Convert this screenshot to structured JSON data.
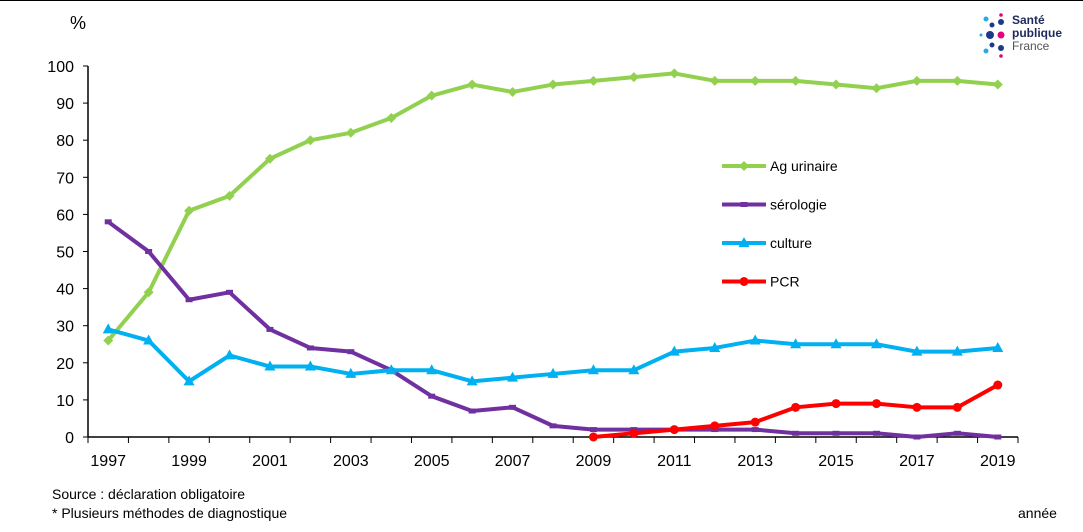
{
  "chart_data": {
    "type": "line",
    "ylabel": "%",
    "xlabel": "année",
    "ylim": [
      0,
      100
    ],
    "yticks": [
      0,
      10,
      20,
      30,
      40,
      50,
      60,
      70,
      80,
      90,
      100
    ],
    "x": [
      1997,
      1998,
      1999,
      2000,
      2001,
      2002,
      2003,
      2004,
      2005,
      2006,
      2007,
      2008,
      2009,
      2010,
      2011,
      2012,
      2013,
      2014,
      2015,
      2016,
      2017,
      2018,
      2019
    ],
    "xtick_labels": [
      "1997",
      "1999",
      "2001",
      "2003",
      "2005",
      "2007",
      "2009",
      "2011",
      "2013",
      "2015",
      "2017",
      "2019"
    ],
    "grid": false,
    "legend_placement": "center-right",
    "series": [
      {
        "name": "Ag urinaire",
        "color": "#92d050",
        "marker": "diamond",
        "values": [
          26,
          39,
          61,
          65,
          75,
          80,
          82,
          86,
          92,
          95,
          93,
          95,
          96,
          97,
          98,
          96,
          96,
          96,
          95,
          94,
          96,
          96,
          95
        ]
      },
      {
        "name": "sérologie",
        "color": "#7030a0",
        "marker": "square",
        "values": [
          58,
          50,
          37,
          39,
          29,
          24,
          23,
          18,
          11,
          7,
          8,
          3,
          2,
          2,
          2,
          2,
          2,
          1,
          1,
          1,
          0,
          1,
          0
        ]
      },
      {
        "name": "culture",
        "color": "#00b0f0",
        "marker": "triangle",
        "values": [
          29,
          26,
          15,
          22,
          19,
          19,
          17,
          18,
          18,
          15,
          16,
          17,
          18,
          18,
          23,
          24,
          26,
          25,
          25,
          25,
          23,
          23,
          24
        ]
      },
      {
        "name": "PCR",
        "color": "#ff0000",
        "marker": "circle",
        "values": [
          null,
          null,
          null,
          null,
          null,
          null,
          null,
          null,
          null,
          null,
          null,
          null,
          0,
          1,
          2,
          3,
          4,
          8,
          9,
          9,
          8,
          8,
          14
        ]
      }
    ]
  },
  "notes": {
    "source": "Source : déclaration obligatoire",
    "footnote": "* Plusieurs méthodes de diagnostique"
  },
  "logo": {
    "line1": "Santé",
    "line2": "publique",
    "line3": "France"
  }
}
